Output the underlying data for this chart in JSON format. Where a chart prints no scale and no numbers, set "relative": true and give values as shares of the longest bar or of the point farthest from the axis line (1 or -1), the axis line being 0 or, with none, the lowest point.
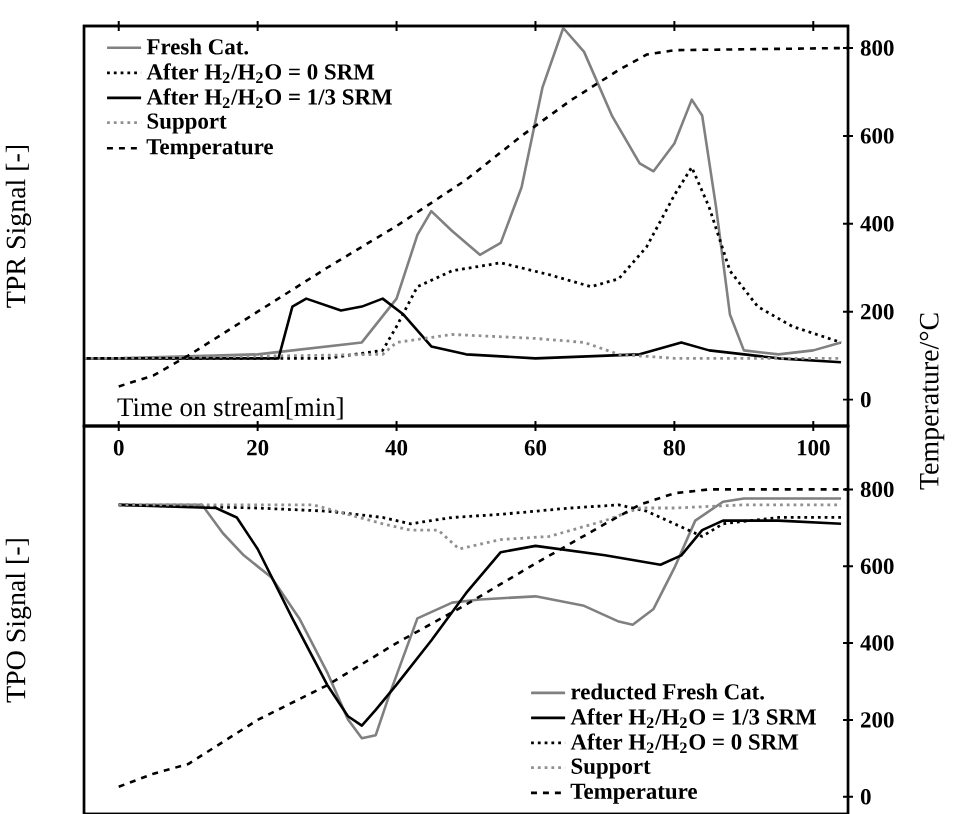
{
  "chart_data": [
    {
      "type": "line",
      "relative": true,
      "ylabel": "TPR Signal [-]",
      "xlabel": "Time on stream[min]",
      "xlim": [
        -5,
        105
      ],
      "xticks": [
        0,
        20,
        40,
        60,
        80,
        100
      ],
      "legend": "top left",
      "series": [
        {
          "name": "Fresh Cat.",
          "color": "#808080",
          "line_style": "solid",
          "x": [
            -5,
            0,
            20,
            35,
            40,
            43,
            45,
            48,
            52,
            55,
            58,
            61,
            64,
            67,
            71,
            75,
            77,
            80,
            82.5,
            84,
            86,
            88,
            90,
            95,
            100,
            104
          ],
          "values": [
            0.17,
            0.17,
            0.18,
            0.21,
            0.32,
            0.48,
            0.54,
            0.49,
            0.43,
            0.46,
            0.6,
            0.85,
            1.0,
            0.94,
            0.78,
            0.66,
            0.64,
            0.71,
            0.82,
            0.78,
            0.55,
            0.28,
            0.19,
            0.18,
            0.19,
            0.21
          ]
        },
        {
          "name": "After H$_{2}$/H$_{2}$O = 0 SRM",
          "color": "#000000",
          "line_style": "dotted",
          "x": [
            -5,
            0,
            30,
            38,
            40,
            43,
            48,
            55,
            62,
            68,
            72,
            76,
            80,
            82.5,
            85,
            88,
            92,
            97,
            104
          ],
          "values": [
            0.17,
            0.17,
            0.17,
            0.19,
            0.25,
            0.35,
            0.39,
            0.41,
            0.38,
            0.35,
            0.37,
            0.45,
            0.58,
            0.65,
            0.55,
            0.39,
            0.3,
            0.25,
            0.21
          ]
        },
        {
          "name": "After H$_{2}$/H$_{2}$O = 1/3 SRM",
          "color": "#000000",
          "line_style": "solid",
          "x": [
            -5,
            0,
            23,
            25,
            27,
            32,
            35,
            38,
            41,
            45,
            50,
            60,
            75,
            81,
            85,
            95,
            104
          ],
          "values": [
            0.17,
            0.17,
            0.17,
            0.3,
            0.32,
            0.29,
            0.3,
            0.32,
            0.28,
            0.2,
            0.18,
            0.17,
            0.18,
            0.21,
            0.19,
            0.17,
            0.16
          ]
        },
        {
          "name": "Support",
          "color": "#909090",
          "line_style": "dotted",
          "x": [
            -5,
            0,
            38,
            40,
            48,
            60,
            67,
            72,
            80,
            104
          ],
          "values": [
            0.17,
            0.17,
            0.18,
            0.21,
            0.23,
            0.22,
            0.21,
            0.18,
            0.17,
            0.17
          ]
        }
      ]
    },
    {
      "type": "line",
      "ylabel": "Temperature/°C",
      "tick_labels": "y",
      "xlim": [
        -5,
        105
      ],
      "ylim": [
        -60,
        850
      ],
      "yticks": [
        0,
        200,
        400,
        600,
        800
      ],
      "legend": "top left",
      "series": [
        {
          "name": "Temperature",
          "color": "#000000",
          "line_style": "dashed",
          "x": [
            0,
            5,
            10,
            20,
            30,
            40,
            50,
            58,
            65,
            72,
            76,
            80,
            105
          ],
          "values": [
            30,
            55,
            100,
            200,
            300,
            395,
            500,
            600,
            680,
            750,
            785,
            795,
            800
          ]
        }
      ]
    },
    {
      "type": "line",
      "relative": true,
      "ylabel": "TPO Signal [-]",
      "tick_labels": false,
      "xlim": [
        -5,
        105
      ],
      "legend": "bottom right",
      "series": [
        {
          "name": "reducted Fresh Cat.",
          "color": "#808080",
          "line_style": "solid",
          "x": [
            0,
            12,
            15,
            18,
            22,
            26,
            30,
            33,
            35,
            37,
            39,
            43,
            48,
            52,
            60,
            67,
            72,
            74,
            77,
            80,
            83,
            87,
            90,
            104
          ],
          "values": [
            0.98,
            0.98,
            0.89,
            0.82,
            0.75,
            0.62,
            0.45,
            0.3,
            0.24,
            0.25,
            0.38,
            0.62,
            0.67,
            0.68,
            0.69,
            0.66,
            0.61,
            0.6,
            0.65,
            0.78,
            0.93,
            0.99,
            1.0,
            1.0
          ]
        },
        {
          "name": "After H$_{2}$/H$_{2}$O = 1/3 SRM",
          "color": "#000000",
          "line_style": "solid",
          "x": [
            0,
            14,
            17,
            20,
            25,
            30,
            33,
            35,
            37,
            40,
            45,
            50,
            55,
            60,
            70,
            78,
            81,
            84,
            87,
            95,
            104
          ],
          "values": [
            0.98,
            0.97,
            0.94,
            0.84,
            0.62,
            0.41,
            0.31,
            0.28,
            0.33,
            0.41,
            0.55,
            0.7,
            0.83,
            0.85,
            0.82,
            0.79,
            0.82,
            0.9,
            0.93,
            0.93,
            0.92
          ]
        },
        {
          "name": "After H$_{2}$/H$_{2}$O = 0 SRM",
          "color": "#000000",
          "line_style": "dotted",
          "x": [
            0,
            20,
            30,
            38,
            42,
            48,
            55,
            65,
            72,
            76,
            80,
            84,
            87,
            95,
            104
          ],
          "values": [
            0.98,
            0.97,
            0.96,
            0.94,
            0.92,
            0.94,
            0.95,
            0.97,
            0.98,
            0.96,
            0.92,
            0.88,
            0.92,
            0.94,
            0.94
          ]
        },
        {
          "name": "Support",
          "color": "#909090",
          "line_style": "dotted",
          "x": [
            0,
            20,
            28,
            38,
            42,
            46,
            49,
            55,
            62,
            70,
            75,
            80,
            90,
            104
          ],
          "values": [
            0.98,
            0.98,
            0.98,
            0.92,
            0.9,
            0.9,
            0.84,
            0.87,
            0.88,
            0.93,
            0.97,
            0.97,
            0.98,
            0.98
          ]
        }
      ]
    },
    {
      "type": "line",
      "tick_labels": "y",
      "xlim": [
        -5,
        105
      ],
      "ylim": [
        -45,
        965
      ],
      "yticks": [
        0,
        200,
        400,
        600,
        800
      ],
      "legend": "bottom right",
      "series": [
        {
          "name": "Temperature",
          "color": "#000000",
          "line_style": "dashed",
          "x": [
            0,
            5,
            10,
            20,
            30,
            35,
            40,
            50,
            60,
            70,
            75,
            80,
            85,
            105
          ],
          "values": [
            26,
            60,
            85,
            200,
            290,
            345,
            400,
            500,
            607,
            710,
            760,
            790,
            800,
            800
          ]
        }
      ]
    }
  ]
}
